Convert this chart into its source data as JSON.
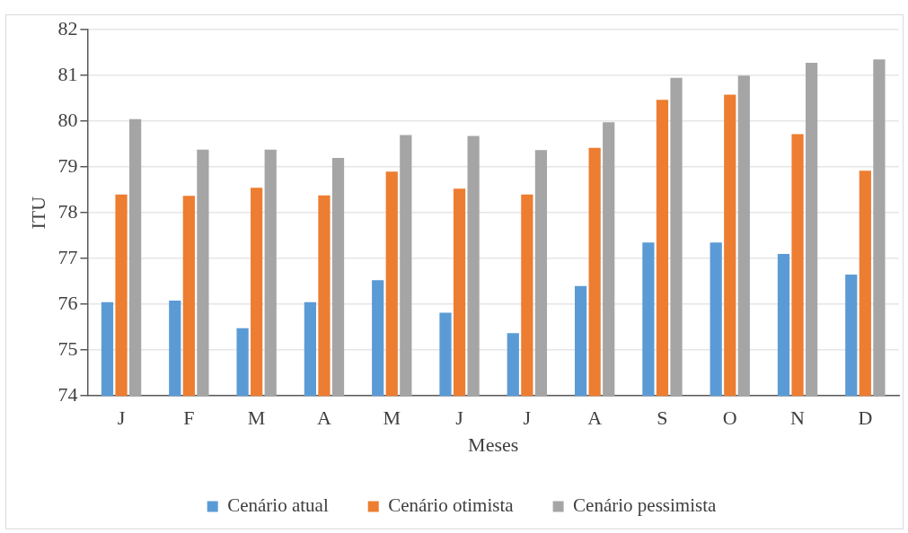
{
  "chart_data": {
    "type": "bar",
    "xlabel": "Meses",
    "ylabel": "ITU",
    "categories": [
      "J",
      "F",
      "M",
      "A",
      "M",
      "J",
      "J",
      "A",
      "S",
      "O",
      "N",
      "D"
    ],
    "series": [
      {
        "name": "Cenário atual",
        "color": "#5b9bd5",
        "values": [
          76.05,
          76.08,
          75.48,
          76.05,
          76.53,
          75.82,
          75.37,
          76.4,
          77.35,
          77.35,
          77.1,
          76.65
        ]
      },
      {
        "name": "Cenário otimista",
        "color": "#ed7d31",
        "values": [
          78.4,
          78.37,
          78.55,
          78.38,
          78.9,
          78.53,
          78.4,
          79.42,
          80.47,
          80.58,
          79.72,
          78.92
        ]
      },
      {
        "name": "Cenário pessimista",
        "color": "#a5a5a5",
        "values": [
          80.05,
          79.38,
          79.38,
          79.2,
          79.7,
          79.68,
          79.37,
          79.98,
          80.95,
          81.0,
          81.28,
          81.35
        ]
      }
    ],
    "ylim": [
      74,
      82
    ],
    "yticks": [
      74,
      75,
      76,
      77,
      78,
      79,
      80,
      81,
      82
    ],
    "grid": "y",
    "legend": "bottom"
  }
}
